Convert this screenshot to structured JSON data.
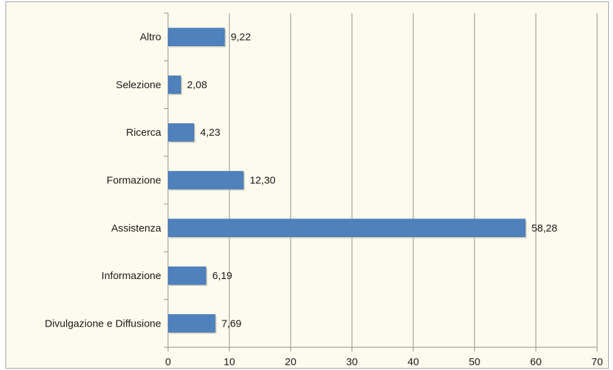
{
  "chart_data": {
    "type": "bar",
    "orientation": "horizontal",
    "title": "",
    "xlabel": "",
    "ylabel": "",
    "categories": [
      "Divulgazione e Diffusione",
      "Informazione",
      "Assistenza",
      "Formazione",
      "Ricerca",
      "Selezione",
      "Altro"
    ],
    "values": [
      7.69,
      6.19,
      58.28,
      12.3,
      4.23,
      2.08,
      9.22
    ],
    "value_labels": [
      "7,69",
      "6,19",
      "58,28",
      "12,30",
      "4,23",
      "2,08",
      "9,22"
    ],
    "xlim": [
      0,
      70
    ],
    "xticks": [
      0,
      10,
      20,
      30,
      40,
      50,
      60,
      70
    ],
    "grid": "vertical",
    "legend": "none",
    "colors": {
      "bar": "#4f81bd",
      "bar_border": "#3a6aa3",
      "grid": "#8c8c8c",
      "axis": "#8c8c8c",
      "background": "#fdfbee"
    }
  }
}
